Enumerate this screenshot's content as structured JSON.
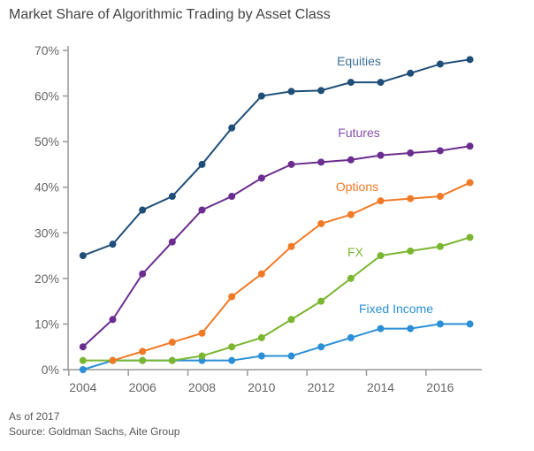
{
  "chart_data": {
    "type": "line",
    "title": "Market Share of Algorithmic Trading by Asset Class",
    "xlabel": "",
    "ylabel": "",
    "x": [
      2004,
      2005,
      2006,
      2007,
      2008,
      2009,
      2010,
      2011,
      2012,
      2013,
      2014,
      2015,
      2016,
      2017
    ],
    "x_ticks": [
      "2004",
      "2006",
      "2008",
      "2010",
      "2012",
      "2014",
      "2016"
    ],
    "y_ticks": [
      "0%",
      "10%",
      "20%",
      "30%",
      "40%",
      "50%",
      "60%",
      "70%"
    ],
    "ylim": [
      0,
      70
    ],
    "grid": false,
    "legend": "inline labels",
    "series": [
      {
        "name": "Equities",
        "color": "#1f4e79",
        "label_color": "#3e6f96",
        "values": [
          25,
          27.5,
          35,
          38,
          45,
          53,
          60,
          61,
          61.2,
          63,
          63,
          65,
          67,
          68
        ]
      },
      {
        "name": "Futures",
        "color": "#6b2d8f",
        "label_color": "#8a4fae",
        "values": [
          5,
          11,
          21,
          28,
          35,
          38,
          42,
          45,
          45.5,
          46,
          47,
          47.5,
          48,
          49
        ]
      },
      {
        "name": "Options",
        "color": "#f07a26",
        "label_color": "#f07a26",
        "values": [
          null,
          2,
          4,
          6,
          8,
          16,
          21,
          27,
          32,
          34,
          37,
          37.5,
          38,
          41
        ]
      },
      {
        "name": "FX",
        "color": "#7ab630",
        "label_color": "#7ab630",
        "values": [
          2,
          2,
          2,
          2,
          3,
          5,
          7,
          11,
          15,
          20,
          25,
          26,
          27,
          29
        ]
      },
      {
        "name": "Fixed Income",
        "color": "#2a8fd6",
        "label_color": "#2a8fd6",
        "values": [
          0,
          2,
          2,
          2,
          2,
          2,
          3,
          3,
          5,
          7,
          9,
          9,
          10,
          10
        ]
      }
    ]
  },
  "footnote": {
    "line1": "As of 2017",
    "line2": "Source: Goldman Sachs, Aite Group"
  }
}
